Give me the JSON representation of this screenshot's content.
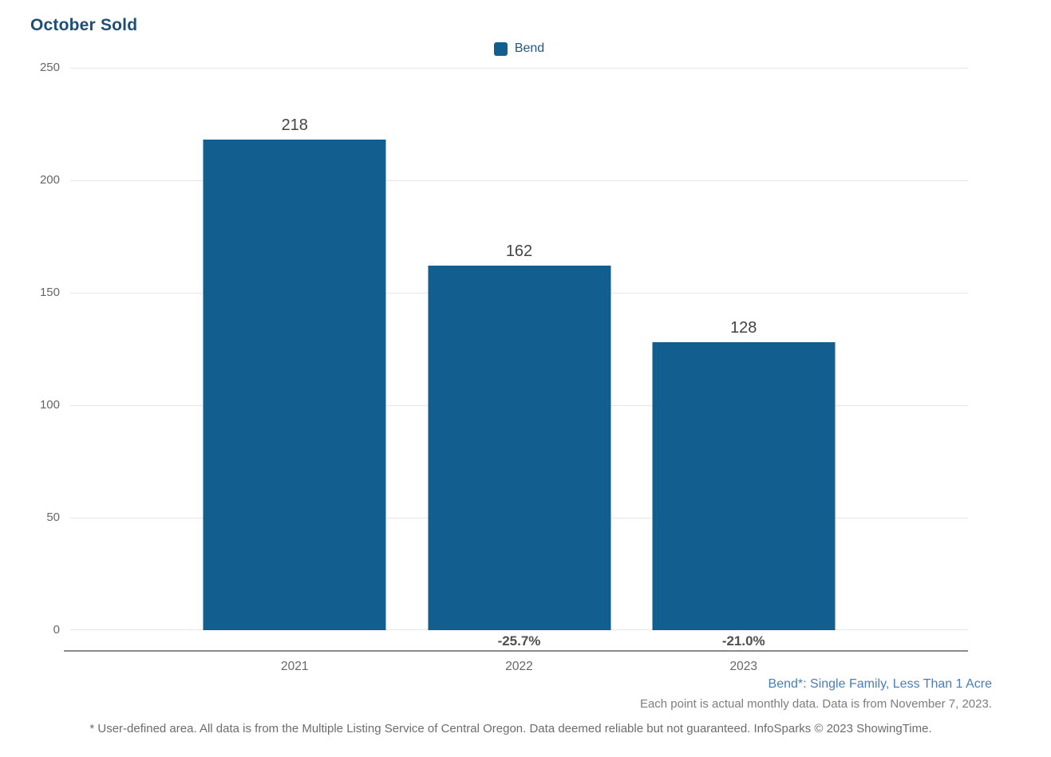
{
  "header": {
    "title": "October Sold"
  },
  "legend": {
    "items": [
      {
        "label": "Bend",
        "color": "#125f8f"
      }
    ]
  },
  "chart_data": {
    "type": "bar",
    "title": "October Sold",
    "categories": [
      "2021",
      "2022",
      "2023"
    ],
    "series": [
      {
        "name": "Bend",
        "color": "#125f8f",
        "values": [
          218,
          162,
          128
        ]
      }
    ],
    "value_labels": [
      "218",
      "162",
      "128"
    ],
    "pct_change_labels": [
      "",
      "-25.7%",
      "-21.0%"
    ],
    "ylim": [
      0,
      250
    ],
    "yticks": [
      "250",
      "200",
      "150",
      "100",
      "50",
      "0"
    ],
    "xlabel": "",
    "ylabel": "",
    "grid": true,
    "legend_position": "top-center"
  },
  "notes": {
    "series_definition": "Bend*: Single Family, Less Than 1 Acre",
    "data_note": "Each point is actual monthly data. Data is from November 7, 2023.",
    "footer": "* User-defined area. All data is from the Multiple Listing Service of Central Oregon. Data deemed reliable but not guaranteed. InfoSparks © 2023 ShowingTime."
  },
  "colors": {
    "bar": "#125f8f",
    "title": "#1e4e74",
    "axis_labels": "#666666",
    "value_labels": "#434343",
    "pct_labels": "#4f4f4f",
    "gridline": "#e7e7e7",
    "axis_line": "#8a8a8a",
    "series_note": "#4a7eb5",
    "footnote": "#6c6c6c"
  }
}
